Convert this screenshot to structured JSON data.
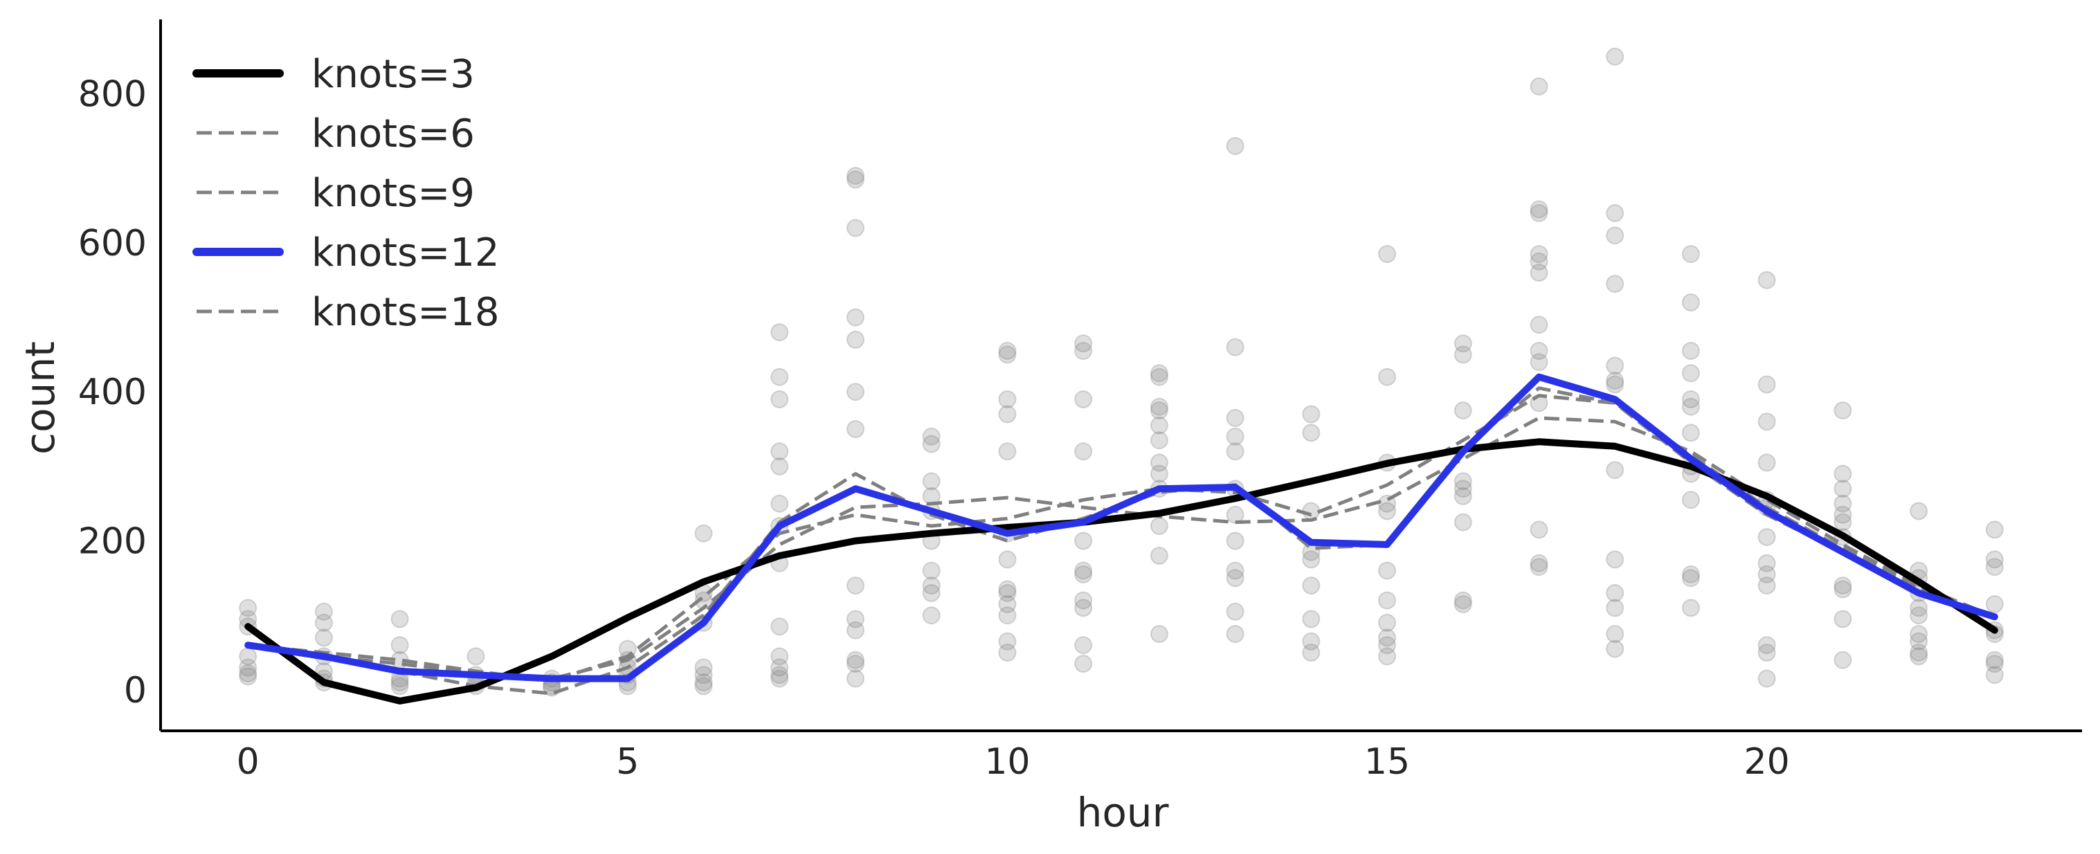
{
  "chart_data": {
    "type": "line",
    "xlabel": "hour",
    "ylabel": "count",
    "xlim": [
      -1.15,
      24.15
    ],
    "ylim": [
      -55,
      900
    ],
    "xticks": [
      0,
      5,
      10,
      15,
      20
    ],
    "yticks": [
      0,
      200,
      400,
      600,
      800
    ],
    "grid": false,
    "legend_position": "top-left",
    "scatter": {
      "color": "#808080",
      "points": [
        [
          0,
          110
        ],
        [
          0,
          95
        ],
        [
          0,
          85
        ],
        [
          0,
          45
        ],
        [
          0,
          30
        ],
        [
          0,
          22
        ],
        [
          0,
          18
        ],
        [
          1,
          105
        ],
        [
          1,
          90
        ],
        [
          1,
          70
        ],
        [
          1,
          45
        ],
        [
          1,
          25
        ],
        [
          1,
          15
        ],
        [
          1,
          10
        ],
        [
          2,
          95
        ],
        [
          2,
          60
        ],
        [
          2,
          40
        ],
        [
          2,
          15
        ],
        [
          2,
          10
        ],
        [
          2,
          5
        ],
        [
          3,
          45
        ],
        [
          3,
          20
        ],
        [
          3,
          10
        ],
        [
          3,
          5
        ],
        [
          4,
          15
        ],
        [
          4,
          10
        ],
        [
          4,
          5
        ],
        [
          4,
          3
        ],
        [
          5,
          55
        ],
        [
          5,
          40
        ],
        [
          5,
          30
        ],
        [
          5,
          20
        ],
        [
          5,
          10
        ],
        [
          5,
          5
        ],
        [
          6,
          210
        ],
        [
          6,
          130
        ],
        [
          6,
          120
        ],
        [
          6,
          90
        ],
        [
          6,
          30
        ],
        [
          6,
          20
        ],
        [
          6,
          10
        ],
        [
          6,
          5
        ],
        [
          7,
          480
        ],
        [
          7,
          420
        ],
        [
          7,
          390
        ],
        [
          7,
          320
        ],
        [
          7,
          300
        ],
        [
          7,
          250
        ],
        [
          7,
          220
        ],
        [
          7,
          170
        ],
        [
          7,
          85
        ],
        [
          7,
          45
        ],
        [
          7,
          30
        ],
        [
          7,
          20
        ],
        [
          7,
          15
        ],
        [
          8,
          690
        ],
        [
          8,
          685
        ],
        [
          8,
          620
        ],
        [
          8,
          500
        ],
        [
          8,
          470
        ],
        [
          8,
          400
        ],
        [
          8,
          350
        ],
        [
          8,
          140
        ],
        [
          8,
          95
        ],
        [
          8,
          80
        ],
        [
          8,
          40
        ],
        [
          8,
          35
        ],
        [
          8,
          15
        ],
        [
          9,
          340
        ],
        [
          9,
          330
        ],
        [
          9,
          280
        ],
        [
          9,
          260
        ],
        [
          9,
          240
        ],
        [
          9,
          200
        ],
        [
          9,
          160
        ],
        [
          9,
          140
        ],
        [
          9,
          130
        ],
        [
          9,
          100
        ],
        [
          10,
          455
        ],
        [
          10,
          450
        ],
        [
          10,
          390
        ],
        [
          10,
          370
        ],
        [
          10,
          320
        ],
        [
          10,
          210
        ],
        [
          10,
          175
        ],
        [
          10,
          135
        ],
        [
          10,
          130
        ],
        [
          10,
          115
        ],
        [
          10,
          100
        ],
        [
          10,
          65
        ],
        [
          10,
          50
        ],
        [
          11,
          465
        ],
        [
          11,
          455
        ],
        [
          11,
          390
        ],
        [
          11,
          320
        ],
        [
          11,
          200
        ],
        [
          11,
          160
        ],
        [
          11,
          155
        ],
        [
          11,
          120
        ],
        [
          11,
          110
        ],
        [
          11,
          60
        ],
        [
          11,
          35
        ],
        [
          12,
          425
        ],
        [
          12,
          420
        ],
        [
          12,
          380
        ],
        [
          12,
          375
        ],
        [
          12,
          355
        ],
        [
          12,
          335
        ],
        [
          12,
          305
        ],
        [
          12,
          290
        ],
        [
          12,
          270
        ],
        [
          12,
          220
        ],
        [
          12,
          180
        ],
        [
          12,
          75
        ],
        [
          13,
          730
        ],
        [
          13,
          460
        ],
        [
          13,
          365
        ],
        [
          13,
          340
        ],
        [
          13,
          320
        ],
        [
          13,
          270
        ],
        [
          13,
          235
        ],
        [
          13,
          200
        ],
        [
          13,
          160
        ],
        [
          13,
          150
        ],
        [
          13,
          105
        ],
        [
          13,
          75
        ],
        [
          14,
          370
        ],
        [
          14,
          345
        ],
        [
          14,
          240
        ],
        [
          14,
          185
        ],
        [
          14,
          175
        ],
        [
          14,
          140
        ],
        [
          14,
          95
        ],
        [
          14,
          65
        ],
        [
          14,
          50
        ],
        [
          15,
          585
        ],
        [
          15,
          420
        ],
        [
          15,
          305
        ],
        [
          15,
          250
        ],
        [
          15,
          240
        ],
        [
          15,
          160
        ],
        [
          15,
          120
        ],
        [
          15,
          90
        ],
        [
          15,
          70
        ],
        [
          15,
          60
        ],
        [
          15,
          45
        ],
        [
          16,
          465
        ],
        [
          16,
          450
        ],
        [
          16,
          375
        ],
        [
          16,
          280
        ],
        [
          16,
          270
        ],
        [
          16,
          260
        ],
        [
          16,
          225
        ],
        [
          16,
          120
        ],
        [
          16,
          115
        ],
        [
          17,
          810
        ],
        [
          17,
          645
        ],
        [
          17,
          640
        ],
        [
          17,
          585
        ],
        [
          17,
          575
        ],
        [
          17,
          560
        ],
        [
          17,
          490
        ],
        [
          17,
          455
        ],
        [
          17,
          440
        ],
        [
          17,
          385
        ],
        [
          17,
          215
        ],
        [
          17,
          170
        ],
        [
          17,
          165
        ],
        [
          18,
          850
        ],
        [
          18,
          640
        ],
        [
          18,
          610
        ],
        [
          18,
          545
        ],
        [
          18,
          435
        ],
        [
          18,
          415
        ],
        [
          18,
          410
        ],
        [
          18,
          295
        ],
        [
          18,
          175
        ],
        [
          18,
          130
        ],
        [
          18,
          110
        ],
        [
          18,
          75
        ],
        [
          18,
          55
        ],
        [
          19,
          585
        ],
        [
          19,
          520
        ],
        [
          19,
          455
        ],
        [
          19,
          425
        ],
        [
          19,
          390
        ],
        [
          19,
          380
        ],
        [
          19,
          345
        ],
        [
          19,
          300
        ],
        [
          19,
          290
        ],
        [
          19,
          255
        ],
        [
          19,
          155
        ],
        [
          19,
          150
        ],
        [
          19,
          110
        ],
        [
          20,
          550
        ],
        [
          20,
          410
        ],
        [
          20,
          360
        ],
        [
          20,
          305
        ],
        [
          20,
          255
        ],
        [
          20,
          245
        ],
        [
          20,
          205
        ],
        [
          20,
          170
        ],
        [
          20,
          155
        ],
        [
          20,
          140
        ],
        [
          20,
          60
        ],
        [
          20,
          50
        ],
        [
          20,
          15
        ],
        [
          21,
          375
        ],
        [
          21,
          290
        ],
        [
          21,
          270
        ],
        [
          21,
          250
        ],
        [
          21,
          235
        ],
        [
          21,
          225
        ],
        [
          21,
          205
        ],
        [
          21,
          140
        ],
        [
          21,
          135
        ],
        [
          21,
          95
        ],
        [
          21,
          40
        ],
        [
          22,
          240
        ],
        [
          22,
          160
        ],
        [
          22,
          150
        ],
        [
          22,
          130
        ],
        [
          22,
          110
        ],
        [
          22,
          100
        ],
        [
          22,
          75
        ],
        [
          22,
          65
        ],
        [
          22,
          50
        ],
        [
          22,
          45
        ],
        [
          23,
          215
        ],
        [
          23,
          175
        ],
        [
          23,
          165
        ],
        [
          23,
          115
        ],
        [
          23,
          80
        ],
        [
          23,
          75
        ],
        [
          23,
          40
        ],
        [
          23,
          35
        ],
        [
          23,
          20
        ]
      ]
    },
    "series": [
      {
        "name": "knots=3",
        "color": "#000000",
        "style": "solid",
        "x": [
          0,
          1,
          2,
          3,
          4,
          5,
          6,
          7,
          8,
          9,
          10,
          11,
          12,
          13,
          14,
          15,
          16,
          17,
          18,
          19,
          20,
          21,
          22,
          23
        ],
        "values": [
          85,
          10,
          -15,
          3,
          45,
          97,
          145,
          180,
          200,
          210,
          218,
          225,
          237,
          257,
          280,
          304,
          323,
          333,
          327,
          300,
          260,
          207,
          145,
          80
        ]
      },
      {
        "name": "knots=6",
        "color": "#808080",
        "style": "dashed",
        "x": [
          0,
          1,
          2,
          3,
          4,
          5,
          6,
          7,
          8,
          9,
          10,
          11,
          12,
          13,
          14,
          15,
          16,
          17,
          18,
          19,
          20,
          21,
          22,
          23
        ],
        "values": [
          60,
          45,
          35,
          22,
          15,
          40,
          110,
          195,
          245,
          250,
          258,
          245,
          233,
          225,
          228,
          255,
          310,
          365,
          360,
          320,
          255,
          195,
          140,
          98
        ]
      },
      {
        "name": "knots=9",
        "color": "#808080",
        "style": "dashed",
        "x": [
          0,
          1,
          2,
          3,
          4,
          5,
          6,
          7,
          8,
          9,
          10,
          11,
          12,
          13,
          14,
          15,
          16,
          17,
          18,
          19,
          20,
          21,
          22,
          23
        ],
        "values": [
          60,
          50,
          40,
          25,
          12,
          45,
          125,
          210,
          235,
          220,
          230,
          255,
          270,
          265,
          235,
          275,
          335,
          395,
          385,
          315,
          245,
          190,
          135,
          98
        ]
      },
      {
        "name": "knots=12",
        "color": "#2a32e6",
        "style": "solid",
        "x": [
          0,
          1,
          2,
          3,
          4,
          5,
          6,
          7,
          8,
          9,
          10,
          11,
          12,
          13,
          14,
          15,
          16,
          17,
          18,
          19,
          20,
          21,
          22,
          23
        ],
        "values": [
          60,
          45,
          25,
          20,
          15,
          15,
          90,
          220,
          270,
          240,
          210,
          225,
          270,
          272,
          198,
          195,
          320,
          420,
          390,
          310,
          240,
          185,
          130,
          98
        ]
      },
      {
        "name": "knots=18",
        "color": "#808080",
        "style": "dashed",
        "x": [
          0,
          1,
          2,
          3,
          4,
          5,
          6,
          7,
          8,
          9,
          10,
          11,
          12,
          13,
          14,
          15,
          16,
          17,
          18,
          19,
          20,
          21,
          22,
          23
        ],
        "values": [
          60,
          42,
          25,
          5,
          -5,
          30,
          100,
          225,
          290,
          235,
          200,
          230,
          265,
          275,
          190,
          195,
          325,
          405,
          385,
          305,
          235,
          185,
          128,
          98
        ]
      }
    ]
  }
}
